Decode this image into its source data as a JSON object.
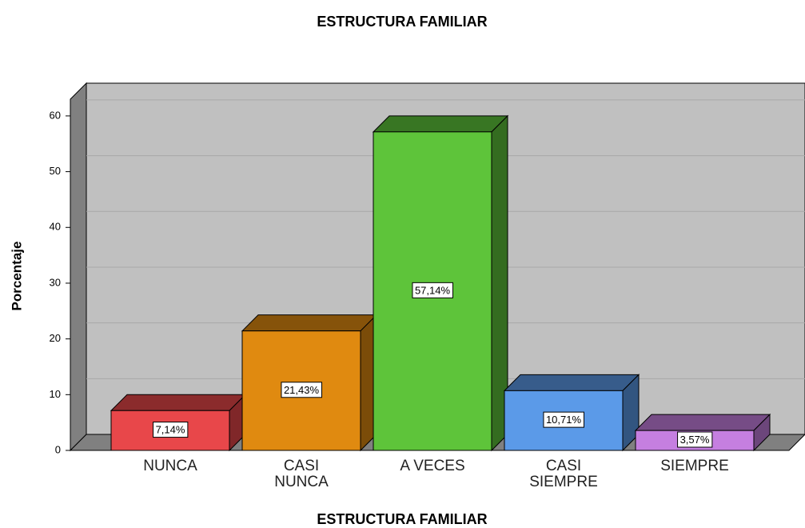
{
  "chart_data": {
    "type": "bar3d",
    "title": "ESTRUCTURA FAMILIAR",
    "x_label": "ESTRUCTURA FAMILIAR",
    "y_label": "Porcentaje",
    "categories": [
      "NUNCA",
      "CASI NUNCA",
      "A VECES",
      "CASI SIEMPRE",
      "SIEMPRE"
    ],
    "values": [
      7.14,
      21.43,
      57.14,
      10.71,
      3.57
    ],
    "value_labels": [
      "7,14%",
      "21,43%",
      "57,14%",
      "10,71%",
      "3,57%"
    ],
    "colors": [
      "#e8474a",
      "#e08a10",
      "#5ec43a",
      "#5b9ae8",
      "#c57fe0"
    ],
    "ylim": [
      0,
      63
    ],
    "yticks": [
      0,
      10,
      20,
      30,
      40,
      50,
      60
    ],
    "grid": true
  }
}
